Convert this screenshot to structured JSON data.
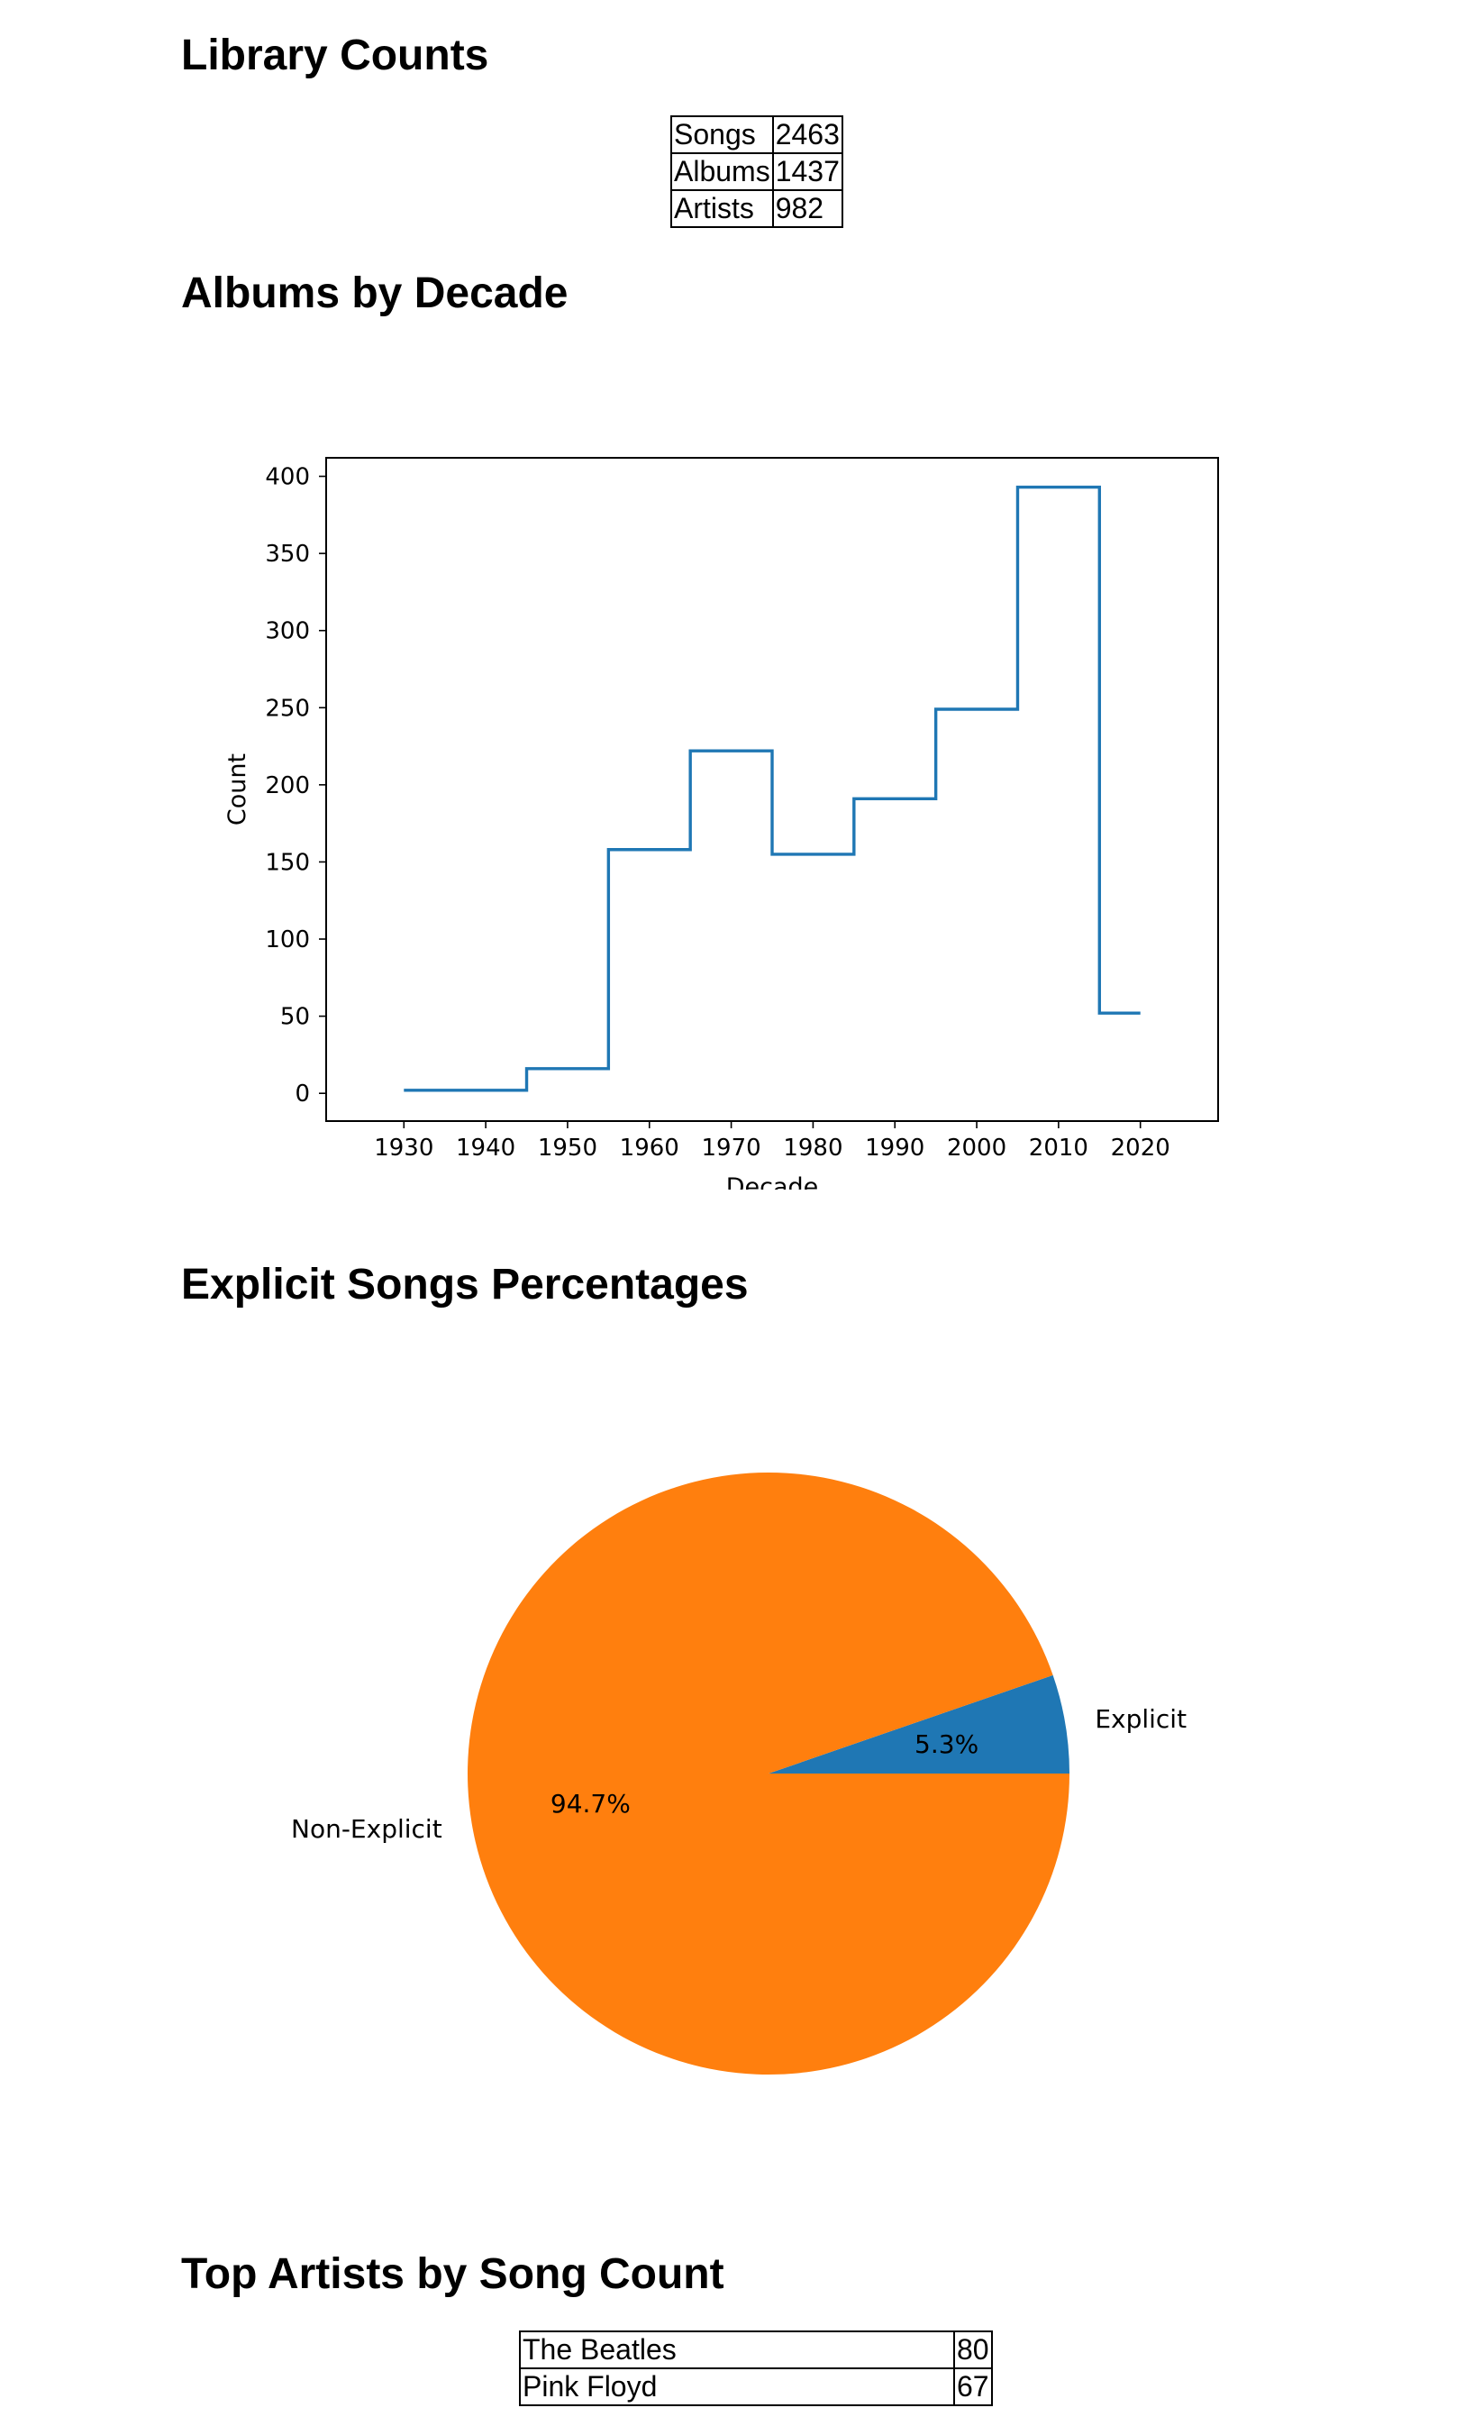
{
  "sections": {
    "library_counts": "Library Counts",
    "albums_by_decade": "Albums by Decade",
    "explicit_songs": "Explicit Songs Percentages",
    "top_artists": "Top Artists by Song Count"
  },
  "library_counts": [
    {
      "label": "Songs",
      "value": "2463"
    },
    {
      "label": "Albums",
      "value": "1437"
    },
    {
      "label": "Artists",
      "value": "982"
    }
  ],
  "top_artists": [
    {
      "name": "The Beatles",
      "count": "80"
    },
    {
      "name": "Pink Floyd",
      "count": "67"
    }
  ],
  "chart_data": [
    {
      "type": "line",
      "drawstyle": "steps-mid",
      "title": "",
      "xlabel": "Decade",
      "ylabel": "Count",
      "x": [
        1930,
        1940,
        1950,
        1960,
        1970,
        1980,
        1990,
        2000,
        2010,
        2020
      ],
      "y": [
        2,
        2,
        16,
        158,
        222,
        155,
        191,
        249,
        393,
        52
      ],
      "xlim": [
        1920.5,
        2029.5
      ],
      "ylim": [
        -18,
        412
      ],
      "xticks": [
        "1930",
        "1940",
        "1950",
        "1960",
        "1970",
        "1980",
        "1990",
        "2000",
        "2010",
        "2020"
      ],
      "yticks": [
        "0",
        "50",
        "100",
        "150",
        "200",
        "250",
        "300",
        "350",
        "400"
      ],
      "grid": false,
      "color": "#1f77b4"
    },
    {
      "type": "pie",
      "labels": [
        "Explicit",
        "Non-Explicit"
      ],
      "values": [
        5.3,
        94.7
      ],
      "autopct": [
        "5.3%",
        "94.7%"
      ],
      "colors": [
        "#1f77b4",
        "#ff7f0e"
      ]
    }
  ]
}
